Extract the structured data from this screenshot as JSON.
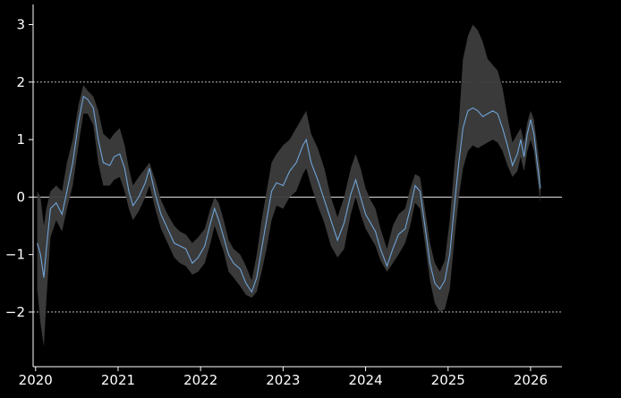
{
  "chart_data": {
    "type": "line",
    "title": "",
    "xlabel": "",
    "ylabel": "",
    "xlim": [
      2019.97,
      2026.38
    ],
    "ylim": [
      -2.95,
      3.35
    ],
    "x_ticks": [
      {
        "value": 2020,
        "label": "2020"
      },
      {
        "value": 2021,
        "label": "2021"
      },
      {
        "value": 2022,
        "label": "2022"
      },
      {
        "value": 2023,
        "label": "2023"
      },
      {
        "value": 2024,
        "label": "2024"
      },
      {
        "value": 2025,
        "label": "2025"
      },
      {
        "value": 2026,
        "label": "2026"
      }
    ],
    "y_ticks": [
      {
        "value": 3,
        "label": "3"
      },
      {
        "value": 2,
        "label": "2"
      },
      {
        "value": 1,
        "label": "1"
      },
      {
        "value": 0,
        "label": "0"
      },
      {
        "value": -1,
        "label": "−1"
      },
      {
        "value": -2,
        "label": "−2"
      }
    ],
    "reference_lines": [
      {
        "y": 2,
        "style": "dotted"
      },
      {
        "y": 0,
        "style": "solid"
      },
      {
        "y": -2,
        "style": "dotted"
      }
    ],
    "colors": {
      "background": "#000000",
      "line": "#6fa3d6",
      "band": "#3d3d3d",
      "text": "#ffffff",
      "ref_line": "#bbbbbb"
    },
    "series": [
      {
        "points": [
          [
            2020.02,
            -0.8,
            -1.6,
            0.1
          ],
          [
            2020.06,
            -1.0,
            -2.2,
            0.0
          ],
          [
            2020.1,
            -1.4,
            -2.6,
            -0.5
          ],
          [
            2020.13,
            -0.9,
            -1.8,
            -0.2
          ],
          [
            2020.18,
            -0.2,
            -0.7,
            0.1
          ],
          [
            2020.25,
            -0.1,
            -0.4,
            0.2
          ],
          [
            2020.32,
            -0.3,
            -0.6,
            0.1
          ],
          [
            2020.38,
            0.1,
            -0.2,
            0.6
          ],
          [
            2020.45,
            0.6,
            0.2,
            1.0
          ],
          [
            2020.52,
            1.3,
            0.9,
            1.6
          ],
          [
            2020.58,
            1.75,
            1.45,
            1.95
          ],
          [
            2020.63,
            1.7,
            1.45,
            1.85
          ],
          [
            2020.7,
            1.55,
            1.25,
            1.75
          ],
          [
            2020.76,
            1.0,
            0.6,
            1.5
          ],
          [
            2020.82,
            0.6,
            0.2,
            1.1
          ],
          [
            2020.9,
            0.55,
            0.2,
            1.0
          ],
          [
            2020.95,
            0.7,
            0.3,
            1.1
          ],
          [
            2021.02,
            0.75,
            0.35,
            1.2
          ],
          [
            2021.08,
            0.5,
            0.1,
            0.9
          ],
          [
            2021.13,
            0.1,
            -0.2,
            0.5
          ],
          [
            2021.18,
            -0.15,
            -0.4,
            0.2
          ],
          [
            2021.25,
            0.0,
            -0.25,
            0.35
          ],
          [
            2021.33,
            0.25,
            0.0,
            0.5
          ],
          [
            2021.38,
            0.5,
            0.2,
            0.6
          ],
          [
            2021.45,
            0.05,
            -0.2,
            0.3
          ],
          [
            2021.52,
            -0.3,
            -0.55,
            -0.05
          ],
          [
            2021.6,
            -0.55,
            -0.8,
            -0.3
          ],
          [
            2021.68,
            -0.8,
            -1.05,
            -0.5
          ],
          [
            2021.75,
            -0.85,
            -1.15,
            -0.6
          ],
          [
            2021.82,
            -0.9,
            -1.2,
            -0.65
          ],
          [
            2021.9,
            -1.15,
            -1.35,
            -0.8
          ],
          [
            2021.97,
            -1.05,
            -1.3,
            -0.7
          ],
          [
            2022.05,
            -0.85,
            -1.15,
            -0.55
          ],
          [
            2022.12,
            -0.45,
            -0.8,
            -0.2
          ],
          [
            2022.17,
            -0.2,
            -0.5,
            0.0
          ],
          [
            2022.22,
            -0.4,
            -0.7,
            -0.1
          ],
          [
            2022.28,
            -0.7,
            -0.95,
            -0.4
          ],
          [
            2022.34,
            -1.0,
            -1.3,
            -0.75
          ],
          [
            2022.4,
            -1.15,
            -1.4,
            -0.9
          ],
          [
            2022.48,
            -1.25,
            -1.55,
            -1.0
          ],
          [
            2022.55,
            -1.5,
            -1.7,
            -1.2
          ],
          [
            2022.62,
            -1.65,
            -1.75,
            -1.45
          ],
          [
            2022.68,
            -1.4,
            -1.65,
            -1.0
          ],
          [
            2022.74,
            -0.9,
            -1.3,
            -0.4
          ],
          [
            2022.8,
            -0.4,
            -0.9,
            0.1
          ],
          [
            2022.86,
            0.1,
            -0.4,
            0.6
          ],
          [
            2022.92,
            0.25,
            -0.15,
            0.75
          ],
          [
            2023.0,
            0.2,
            -0.2,
            0.9
          ],
          [
            2023.08,
            0.45,
            0.0,
            1.0
          ],
          [
            2023.16,
            0.6,
            0.1,
            1.2
          ],
          [
            2023.24,
            0.9,
            0.4,
            1.4
          ],
          [
            2023.28,
            1.0,
            0.5,
            1.5
          ],
          [
            2023.34,
            0.6,
            0.2,
            1.1
          ],
          [
            2023.42,
            0.3,
            -0.15,
            0.85
          ],
          [
            2023.5,
            -0.05,
            -0.45,
            0.5
          ],
          [
            2023.58,
            -0.4,
            -0.85,
            0.0
          ],
          [
            2023.66,
            -0.75,
            -1.05,
            -0.35
          ],
          [
            2023.74,
            -0.45,
            -0.9,
            0.0
          ],
          [
            2023.82,
            0.05,
            -0.3,
            0.5
          ],
          [
            2023.88,
            0.3,
            0.0,
            0.75
          ],
          [
            2023.94,
            0.0,
            -0.3,
            0.5
          ],
          [
            2024.0,
            -0.3,
            -0.55,
            0.15
          ],
          [
            2024.06,
            -0.45,
            -0.7,
            -0.05
          ],
          [
            2024.12,
            -0.6,
            -0.85,
            -0.2
          ],
          [
            2024.18,
            -0.9,
            -1.1,
            -0.55
          ],
          [
            2024.26,
            -1.2,
            -1.3,
            -0.9
          ],
          [
            2024.33,
            -0.9,
            -1.15,
            -0.5
          ],
          [
            2024.4,
            -0.65,
            -1.0,
            -0.3
          ],
          [
            2024.48,
            -0.55,
            -0.8,
            -0.2
          ],
          [
            2024.54,
            -0.2,
            -0.5,
            0.15
          ],
          [
            2024.6,
            0.2,
            -0.1,
            0.4
          ],
          [
            2024.66,
            0.1,
            -0.2,
            0.35
          ],
          [
            2024.72,
            -0.5,
            -0.8,
            -0.2
          ],
          [
            2024.78,
            -1.15,
            -1.45,
            -0.8
          ],
          [
            2024.84,
            -1.5,
            -1.85,
            -1.15
          ],
          [
            2024.9,
            -1.6,
            -2.0,
            -1.3
          ],
          [
            2024.96,
            -1.45,
            -1.95,
            -1.1
          ],
          [
            2025.02,
            -1.0,
            -1.6,
            -0.4
          ],
          [
            2025.08,
            -0.1,
            -0.7,
            0.6
          ],
          [
            2025.13,
            0.6,
            0.0,
            1.3
          ],
          [
            2025.18,
            1.2,
            0.5,
            2.4
          ],
          [
            2025.24,
            1.5,
            0.8,
            2.8
          ],
          [
            2025.3,
            1.55,
            0.9,
            3.0
          ],
          [
            2025.36,
            1.5,
            0.85,
            2.9
          ],
          [
            2025.42,
            1.4,
            0.9,
            2.7
          ],
          [
            2025.48,
            1.45,
            0.95,
            2.4
          ],
          [
            2025.54,
            1.5,
            1.0,
            2.3
          ],
          [
            2025.6,
            1.45,
            0.95,
            2.2
          ],
          [
            2025.66,
            1.2,
            0.8,
            1.9
          ],
          [
            2025.72,
            0.9,
            0.55,
            1.4
          ],
          [
            2025.78,
            0.55,
            0.35,
            0.95
          ],
          [
            2025.84,
            0.75,
            0.45,
            1.1
          ],
          [
            2025.88,
            1.0,
            0.7,
            1.2
          ],
          [
            2025.92,
            0.7,
            0.45,
            0.95
          ],
          [
            2025.96,
            1.1,
            0.8,
            1.3
          ],
          [
            2026.0,
            1.35,
            1.0,
            1.5
          ],
          [
            2026.04,
            1.1,
            0.8,
            1.35
          ],
          [
            2026.08,
            0.6,
            0.35,
            0.9
          ],
          [
            2026.12,
            0.15,
            -0.1,
            0.45
          ]
        ]
      }
    ]
  }
}
